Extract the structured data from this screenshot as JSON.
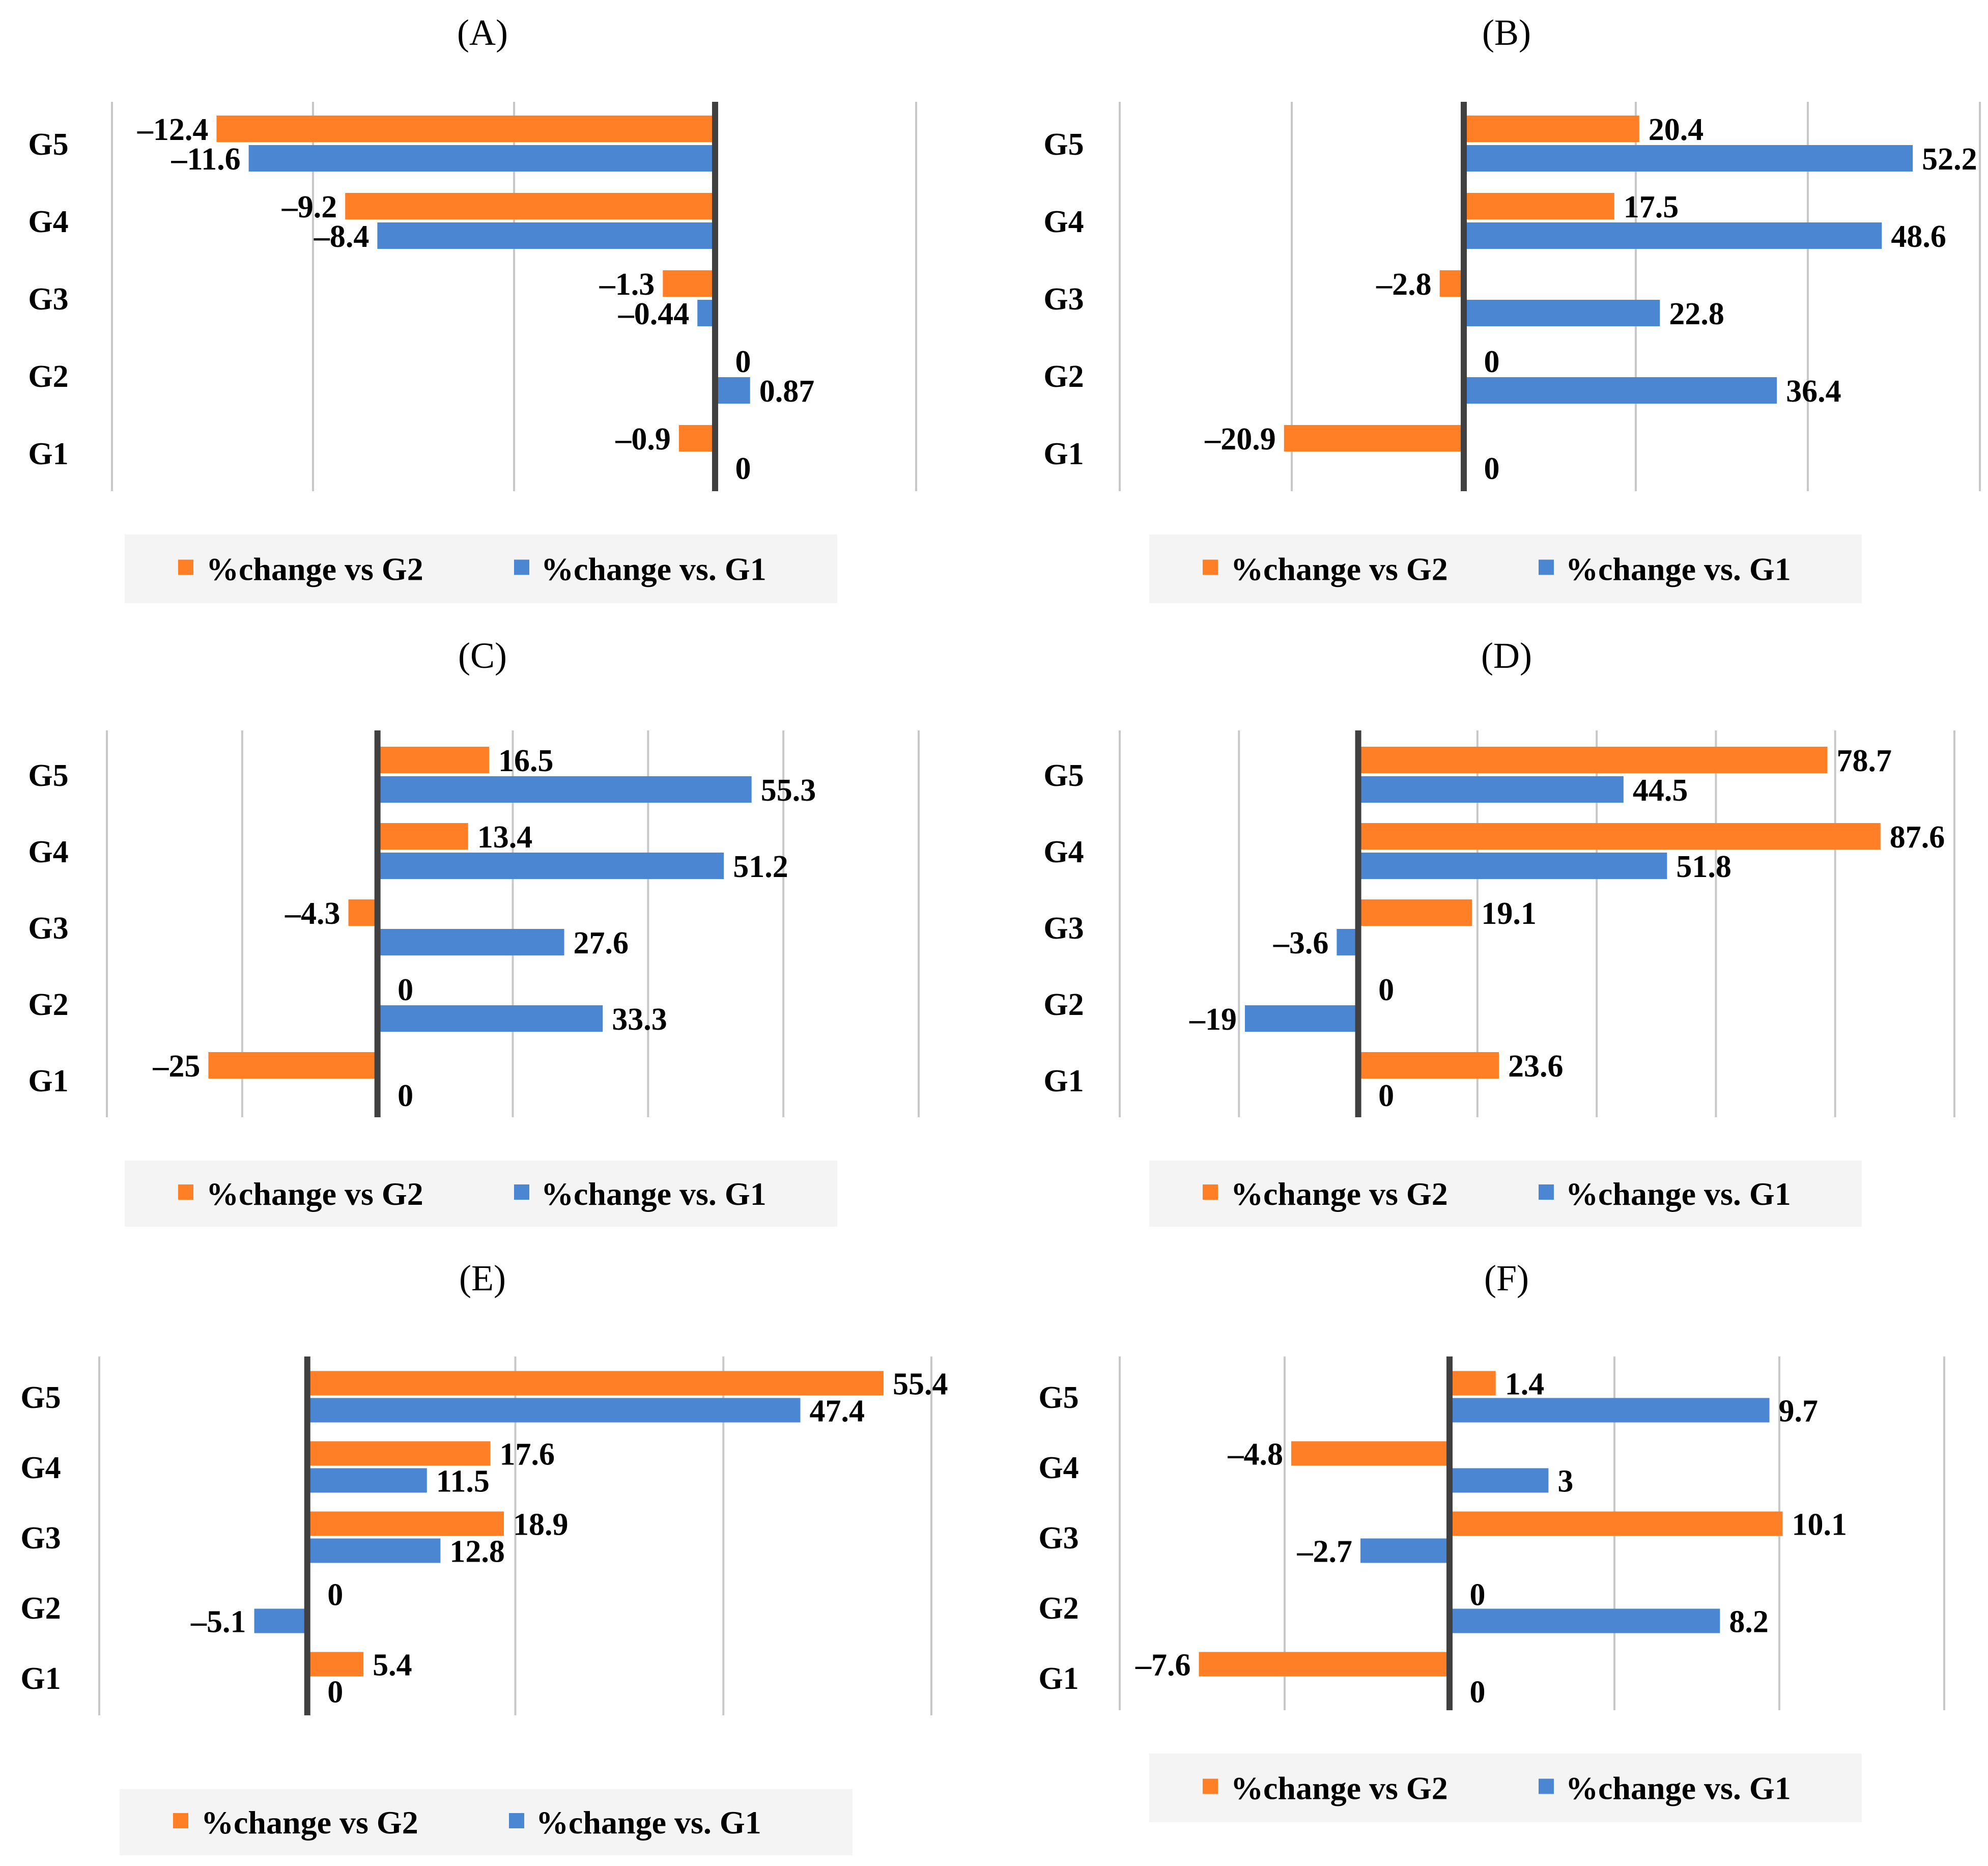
{
  "colors": {
    "vs_g2": "#FF7F27",
    "vs_g1": "#4A86D2",
    "axis": "#404040",
    "grid": "#C8C8C8",
    "legend_bg": "#F4F4F4"
  },
  "legend": {
    "vs_g2": "%change vs G2",
    "vs_g1": "%change vs. G1"
  },
  "chart_data": [
    {
      "type": "bar",
      "orientation": "horizontal",
      "title": "(A)",
      "categories": [
        "G5",
        "G4",
        "G3",
        "G2",
        "G1"
      ],
      "series": [
        {
          "name": "%change vs G2",
          "values": [
            -12.4,
            -9.2,
            -1.3,
            0,
            -0.9
          ],
          "labels": [
            "–12.4",
            "–9.2",
            "–1.3",
            "0",
            "–0.9"
          ]
        },
        {
          "name": "%change vs. G1",
          "values": [
            -11.6,
            -8.4,
            -0.44,
            0.87,
            0
          ],
          "labels": [
            "–11.6",
            "–8.4",
            "–0.44",
            "0.87",
            "0"
          ]
        }
      ],
      "xlim": [
        -15,
        5
      ],
      "gridlines": [
        -15,
        -10,
        -5,
        0,
        5
      ]
    },
    {
      "type": "bar",
      "orientation": "horizontal",
      "title": "(B)",
      "categories": [
        "G5",
        "G4",
        "G3",
        "G2",
        "G1"
      ],
      "series": [
        {
          "name": "%change vs G2",
          "values": [
            20.4,
            17.5,
            -2.8,
            0,
            -20.9
          ],
          "labels": [
            "20.4",
            "17.5",
            "–2.8",
            "0",
            "–20.9"
          ]
        },
        {
          "name": "%change vs. G1",
          "values": [
            52.2,
            48.6,
            22.8,
            36.4,
            0
          ],
          "labels": [
            "52.2",
            "48.6",
            "22.8",
            "36.4",
            "0"
          ]
        }
      ],
      "xlim": [
        -40,
        60
      ],
      "gridlines": [
        -40,
        -20,
        0,
        20,
        40,
        60
      ]
    },
    {
      "type": "bar",
      "orientation": "horizontal",
      "title": "(C)",
      "categories": [
        "G5",
        "G4",
        "G3",
        "G2",
        "G1"
      ],
      "series": [
        {
          "name": "%change vs G2",
          "values": [
            16.5,
            13.4,
            -4.3,
            0,
            -25
          ],
          "labels": [
            "16.5",
            "13.4",
            "–4.3",
            "0",
            "–25"
          ]
        },
        {
          "name": "%change vs. G1",
          "values": [
            55.3,
            51.2,
            27.6,
            33.3,
            0
          ],
          "labels": [
            "55.3",
            "51.2",
            "27.6",
            "33.3",
            "0"
          ]
        }
      ],
      "xlim": [
        -40,
        80
      ],
      "gridlines": [
        -40,
        -20,
        0,
        20,
        40,
        60,
        80
      ]
    },
    {
      "type": "bar",
      "orientation": "horizontal",
      "title": "(D)",
      "categories": [
        "G5",
        "G4",
        "G3",
        "G2",
        "G1"
      ],
      "series": [
        {
          "name": "%change vs G2",
          "values": [
            78.7,
            87.6,
            19.1,
            0,
            23.6
          ],
          "labels": [
            "78.7",
            "87.6",
            "19.1",
            "0",
            "23.6"
          ]
        },
        {
          "name": "%change vs. G1",
          "values": [
            44.5,
            51.8,
            -3.6,
            -19,
            0
          ],
          "labels": [
            "44.5",
            "51.8",
            "–3.6",
            "–19",
            "0"
          ]
        }
      ],
      "xlim": [
        -40,
        100
      ],
      "gridlines": [
        -40,
        -20,
        0,
        20,
        40,
        60,
        80,
        100
      ]
    },
    {
      "type": "bar",
      "orientation": "horizontal",
      "title": "(E)",
      "categories": [
        "G5",
        "G4",
        "G3",
        "G2",
        "G1"
      ],
      "series": [
        {
          "name": "%change vs G2",
          "values": [
            55.4,
            17.6,
            18.9,
            0,
            5.4
          ],
          "labels": [
            "55.4",
            "17.6",
            "18.9",
            "0",
            "5.4"
          ]
        },
        {
          "name": "%change vs. G1",
          "values": [
            47.4,
            11.5,
            12.8,
            -5.1,
            0
          ],
          "labels": [
            "47.4",
            "11.5",
            "12.8",
            "–5.1",
            "0"
          ]
        }
      ],
      "xlim": [
        -20,
        60
      ],
      "gridlines": [
        -20,
        0,
        20,
        40,
        60
      ]
    },
    {
      "type": "bar",
      "orientation": "horizontal",
      "title": "(F)",
      "categories": [
        "G5",
        "G4",
        "G3",
        "G2",
        "G1"
      ],
      "series": [
        {
          "name": "%change vs G2",
          "values": [
            1.4,
            -4.8,
            10.1,
            0,
            -7.6
          ],
          "labels": [
            "1.4",
            "–4.8",
            "10.1",
            "0",
            "–7.6"
          ]
        },
        {
          "name": "%change vs. G1",
          "values": [
            9.7,
            3,
            -2.7,
            8.2,
            0
          ],
          "labels": [
            "9.7",
            "3",
            "–2.7",
            "8.2",
            "0"
          ]
        }
      ],
      "xlim": [
        -10,
        15
      ],
      "gridlines": [
        -10,
        -5,
        0,
        5,
        10,
        15
      ]
    }
  ]
}
